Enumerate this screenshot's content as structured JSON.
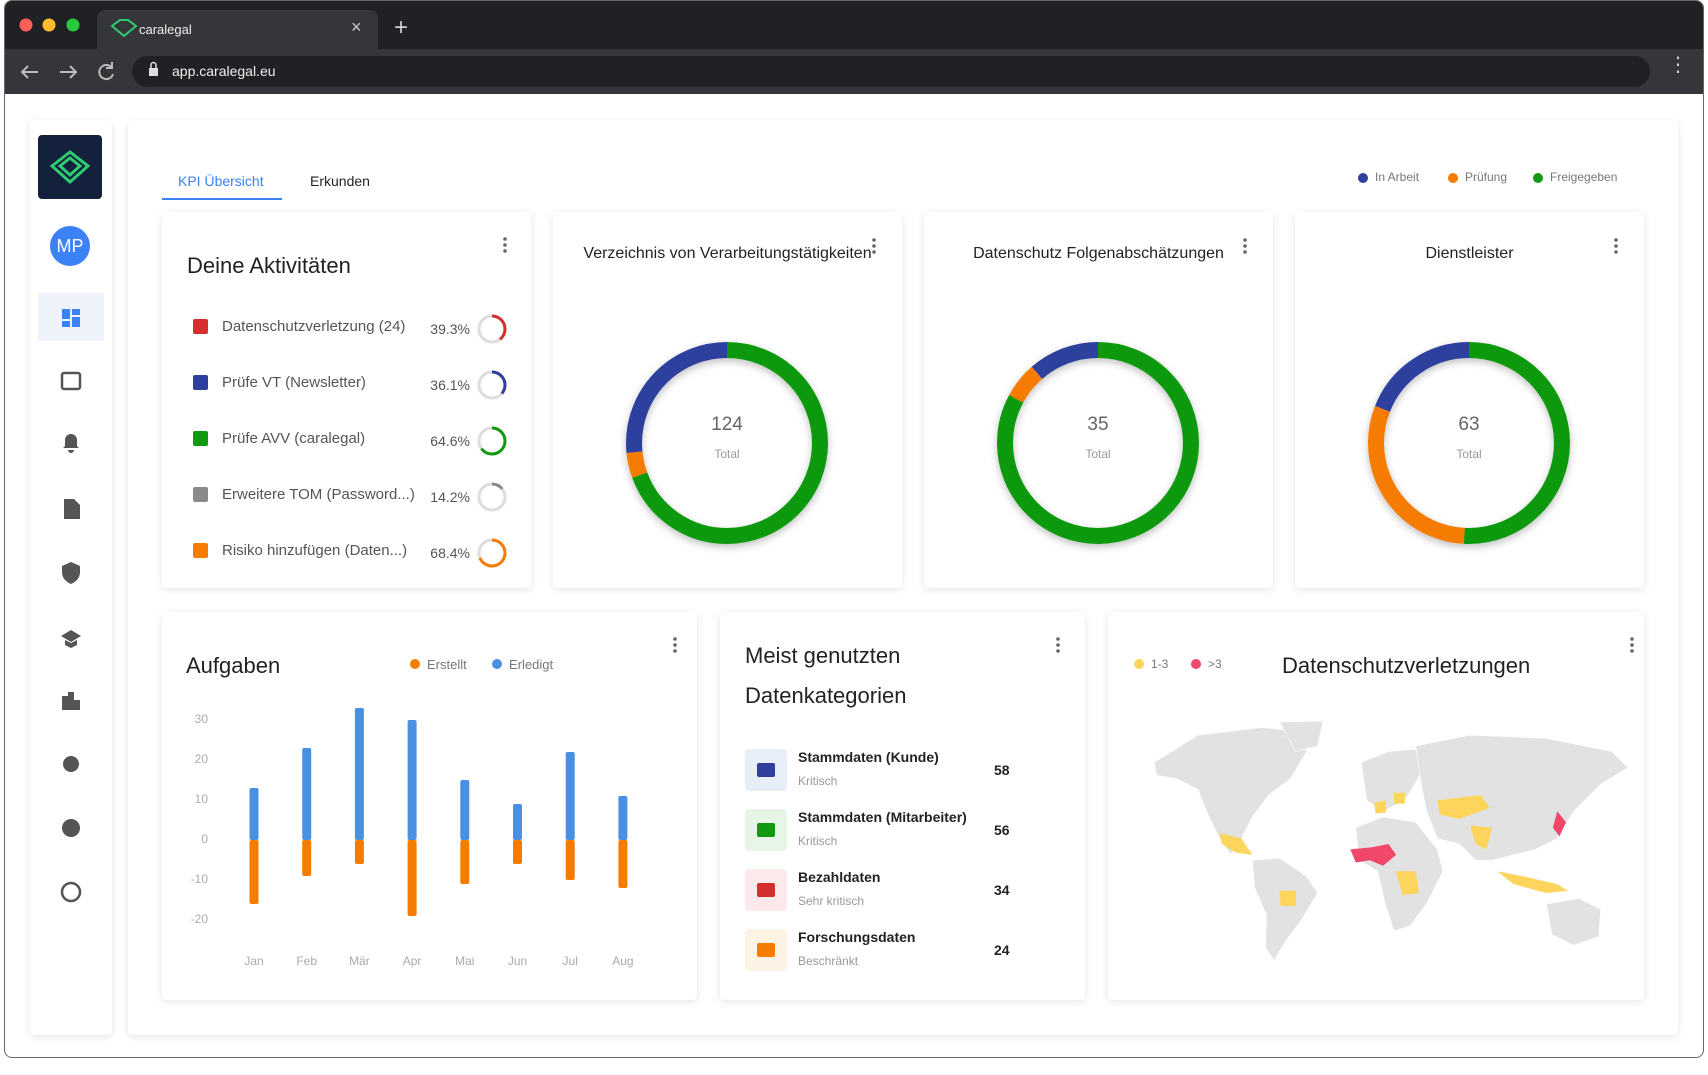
{
  "browser": {
    "tab_title": "caralegal",
    "url": "app.caralegal.eu"
  },
  "sidebar": {
    "avatar": "MP"
  },
  "tabs": [
    "KPI Übersicht",
    "Erkunden"
  ],
  "status_legend": [
    {
      "name": "In Arbeit",
      "color": "#2f3f9e"
    },
    {
      "name": "Prüfung",
      "color": "#f57c00"
    },
    {
      "name": "Freigegeben",
      "color": "#119911"
    }
  ],
  "activities": {
    "title": "Deine Aktivitäten",
    "items": [
      {
        "label": "Datenschutzverletzung (24)",
        "value": 39.3,
        "value_label": "39.3%",
        "color": "#d32f2f"
      },
      {
        "label": "Prüfe VT (Newsletter)",
        "value": 36.1,
        "value_label": "36.1%",
        "color": "#2f3f9e"
      },
      {
        "label": "Prüfe AVV (caralegal)",
        "value": 64.6,
        "value_label": "64.6%",
        "color": "#119911"
      },
      {
        "label": "Erweitere TOM (Password...)",
        "value": 14.2,
        "value_label": "14.2%",
        "color": "#8a8a8a"
      },
      {
        "label": "Risiko hinzufügen (Daten...)",
        "value": 68.4,
        "value_label": "68.4%",
        "color": "#f57c00"
      }
    ]
  },
  "donuts": [
    {
      "type": "pie",
      "title": "Verzeichnis von Verarbeitungstätigkeiten",
      "total": 124,
      "total_label": "Total",
      "values": [
        33,
        5,
        86
      ]
    },
    {
      "type": "pie",
      "title": "Datenschutz Folgenabschätzungen",
      "total": 35,
      "total_label": "Total",
      "values": [
        4,
        2,
        29
      ]
    },
    {
      "type": "pie",
      "title": "Dienstleister",
      "total": 63,
      "total_label": "Total",
      "values": [
        12,
        19,
        32
      ]
    }
  ],
  "chart_data": {
    "type": "bar",
    "title": "Aufgaben",
    "categories": [
      "Jan",
      "Feb",
      "Mär",
      "Apr",
      "Mai",
      "Jun",
      "Jul",
      "Aug"
    ],
    "series": [
      {
        "name": "Erstellt",
        "color": "#f57c00",
        "values": [
          -16,
          -9,
          -6,
          -19,
          -11,
          -6,
          -10,
          -12
        ]
      },
      {
        "name": "Erledigt",
        "color": "#4a90e2",
        "values": [
          13,
          23,
          33,
          30,
          15,
          9,
          22,
          11
        ]
      }
    ],
    "ylim": [
      -21,
      34
    ],
    "yticks": [
      30,
      20,
      10,
      0,
      -10,
      -20
    ]
  },
  "data_categories": {
    "title": "Meist genutzten Datenkategorien",
    "items": [
      {
        "label": "Stammdaten (Kunde)",
        "sub": "Kritisch",
        "value": 58,
        "color": "#2f3f9e",
        "bg": "#e8eef8"
      },
      {
        "label": "Stammdaten (Mitarbeiter)",
        "sub": "Kritisch",
        "value": 56,
        "color": "#119911",
        "bg": "#e6f5e6"
      },
      {
        "label": "Bezahldaten",
        "sub": "Sehr kritisch",
        "value": 34,
        "color": "#d32f2f",
        "bg": "#fbe9ec"
      },
      {
        "label": "Forschungsdaten",
        "sub": "Beschränkt",
        "value": 24,
        "color": "#f57c00",
        "bg": "#fdf3e4"
      }
    ]
  },
  "map": {
    "title": "Datenschutzverletzungen",
    "legend": [
      {
        "name": "1-3",
        "color": "#fdd55c"
      },
      {
        "name": ">3",
        "color": "#f0476b"
      }
    ]
  }
}
